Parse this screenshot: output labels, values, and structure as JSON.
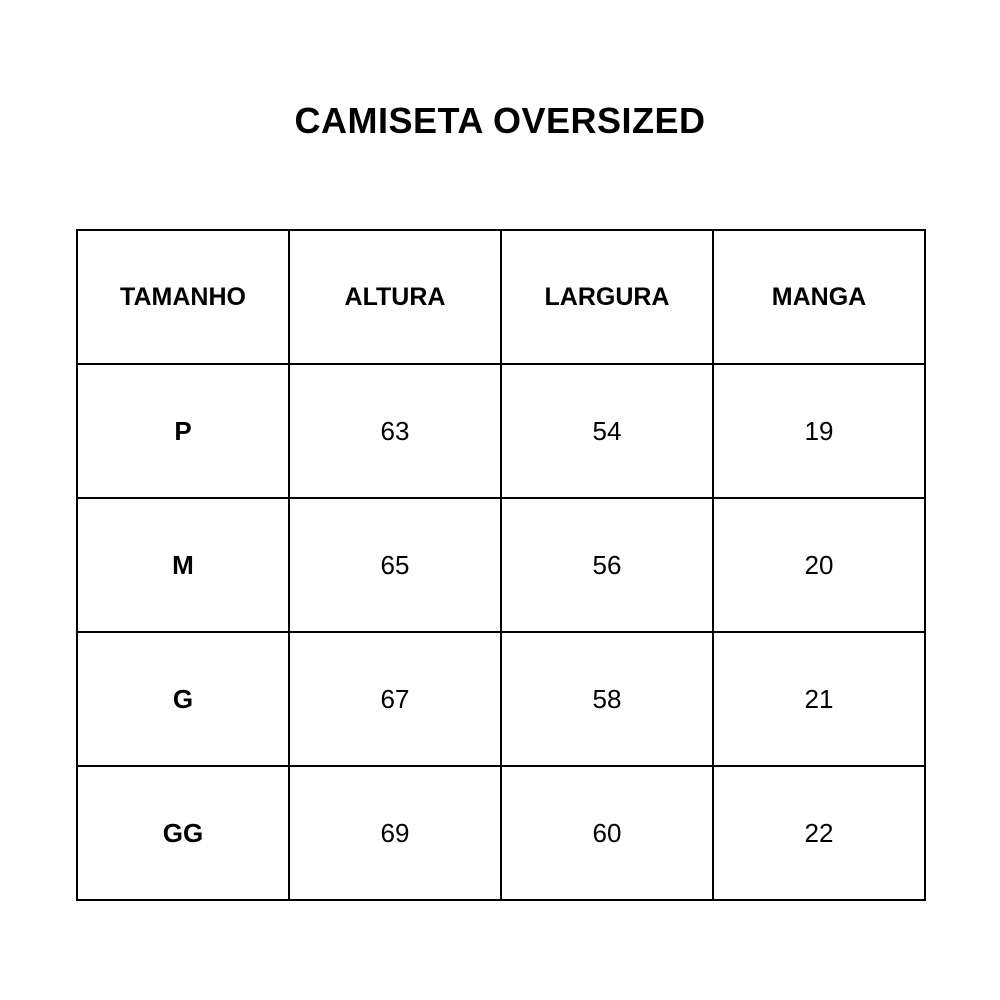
{
  "title": "CAMISETA OVERSIZED",
  "headers": [
    "TAMANHO",
    "ALTURA",
    "LARGURA",
    "MANGA"
  ],
  "rows": [
    [
      "P",
      "63",
      "54",
      "19"
    ],
    [
      "M",
      "65",
      "56",
      "20"
    ],
    [
      "G",
      "67",
      "58",
      "21"
    ],
    [
      "GG",
      "69",
      "60",
      "22"
    ]
  ]
}
